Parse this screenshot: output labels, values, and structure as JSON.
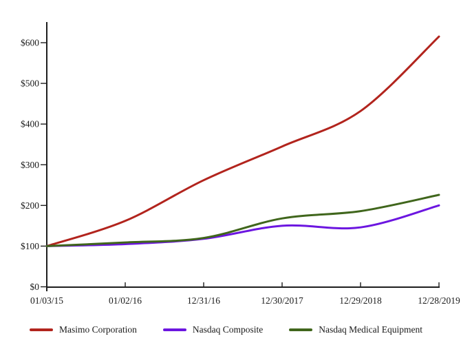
{
  "chart_data": {
    "type": "line",
    "title": "",
    "xlabel": "",
    "ylabel": "",
    "x_tick_labels": [
      "01/03/15",
      "01/02/16",
      "12/31/16",
      "12/30/2017",
      "12/29/2018",
      "12/28/2019"
    ],
    "y_ticks": [
      0,
      100,
      200,
      300,
      400,
      500,
      600
    ],
    "y_tick_labels": [
      "$0",
      "$100",
      "$200",
      "$300",
      "$400",
      "$500",
      "$600"
    ],
    "ylim": [
      0,
      650
    ],
    "grid": false,
    "legend_position": "bottom",
    "axis_color": "#1d1d1d",
    "text_color": "#1a1a1a",
    "series": [
      {
        "name": "Masimo Corporation",
        "color": "#b2241d",
        "values": [
          100,
          162,
          262,
          345,
          432,
          615
        ]
      },
      {
        "name": "Nasdaq Composite",
        "color": "#6c16e0",
        "values": [
          100,
          105,
          118,
          150,
          146,
          200
        ]
      },
      {
        "name": "Nasdaq Medical Equipment",
        "color": "#40661c",
        "values": [
          100,
          109,
          120,
          168,
          186,
          226
        ]
      }
    ]
  }
}
